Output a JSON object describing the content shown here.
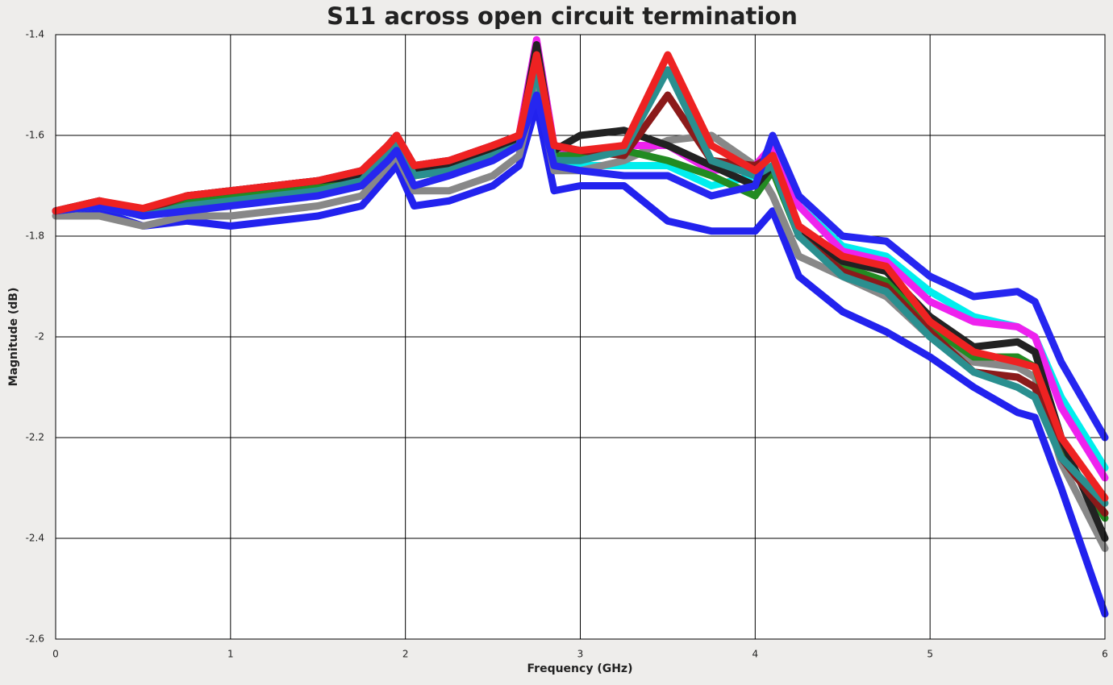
{
  "chart_data": {
    "type": "line",
    "title": "S11 across open circuit termination",
    "x_label": "Frequency (GHz)",
    "y_label": "Magnitude (dB)",
    "x": [
      0,
      0.25,
      0.5,
      0.75,
      1,
      1.25,
      1.5,
      1.75,
      1.9,
      1.95,
      2.05,
      2.25,
      2.5,
      2.65,
      2.75,
      2.85,
      3,
      3.25,
      3.5,
      3.75,
      4,
      4.1,
      4.25,
      4.5,
      4.75,
      5,
      5.25,
      5.5,
      5.6,
      5.75,
      6
    ],
    "xlim": [
      0,
      6
    ],
    "xticks": [
      0,
      1,
      2,
      3,
      4,
      5,
      6
    ],
    "ylim": [
      -2.6,
      -1.4
    ],
    "yticks": [
      -2.6,
      -2.4,
      -2.2,
      -2,
      -1.8,
      -1.6,
      -1.4
    ],
    "grid": true,
    "series": [
      {
        "color": "#2222ee",
        "values": [
          -1.75,
          -1.75,
          -1.78,
          -1.77,
          -1.78,
          -1.77,
          -1.76,
          -1.74,
          -1.68,
          -1.66,
          -1.74,
          -1.73,
          -1.7,
          -1.66,
          -1.54,
          -1.71,
          -1.7,
          -1.7,
          -1.77,
          -1.79,
          -1.79,
          -1.75,
          -1.88,
          -1.95,
          -1.99,
          -2.04,
          -2.1,
          -2.15,
          -2.16,
          -2.3,
          -2.55
        ]
      },
      {
        "color": "#00eeee",
        "values": [
          -1.75,
          -1.74,
          -1.76,
          -1.74,
          -1.73,
          -1.72,
          -1.71,
          -1.69,
          -1.63,
          -1.61,
          -1.68,
          -1.66,
          -1.64,
          -1.62,
          -1.5,
          -1.65,
          -1.66,
          -1.66,
          -1.66,
          -1.7,
          -1.68,
          -1.63,
          -1.74,
          -1.82,
          -1.84,
          -1.91,
          -1.96,
          -1.98,
          -2.0,
          -2.12,
          -2.26
        ]
      },
      {
        "color": "#888888",
        "values": [
          -1.76,
          -1.76,
          -1.78,
          -1.76,
          -1.76,
          -1.75,
          -1.74,
          -1.72,
          -1.66,
          -1.64,
          -1.71,
          -1.71,
          -1.68,
          -1.64,
          -1.5,
          -1.67,
          -1.67,
          -1.65,
          -1.61,
          -1.6,
          -1.66,
          -1.72,
          -1.84,
          -1.88,
          -1.92,
          -2.0,
          -2.05,
          -2.06,
          -2.08,
          -2.25,
          -2.42
        ]
      },
      {
        "color": "#ee22ee",
        "values": [
          -1.75,
          -1.73,
          -1.75,
          -1.72,
          -1.71,
          -1.7,
          -1.69,
          -1.67,
          -1.62,
          -1.6,
          -1.66,
          -1.65,
          -1.62,
          -1.6,
          -1.41,
          -1.62,
          -1.64,
          -1.62,
          -1.62,
          -1.67,
          -1.66,
          -1.62,
          -1.74,
          -1.83,
          -1.85,
          -1.93,
          -1.97,
          -1.98,
          -2.0,
          -2.14,
          -2.28
        ]
      },
      {
        "color": "#228b22",
        "values": [
          -1.75,
          -1.74,
          -1.76,
          -1.73,
          -1.72,
          -1.71,
          -1.7,
          -1.68,
          -1.62,
          -1.61,
          -1.68,
          -1.67,
          -1.64,
          -1.62,
          -1.44,
          -1.64,
          -1.64,
          -1.63,
          -1.65,
          -1.68,
          -1.72,
          -1.67,
          -1.8,
          -1.86,
          -1.89,
          -1.98,
          -2.04,
          -2.04,
          -2.06,
          -2.22,
          -2.36
        ]
      },
      {
        "color": "#222222",
        "values": [
          -1.75,
          -1.73,
          -1.75,
          -1.72,
          -1.71,
          -1.7,
          -1.69,
          -1.68,
          -1.62,
          -1.6,
          -1.67,
          -1.66,
          -1.63,
          -1.61,
          -1.42,
          -1.63,
          -1.6,
          -1.59,
          -1.62,
          -1.66,
          -1.7,
          -1.66,
          -1.79,
          -1.85,
          -1.87,
          -1.96,
          -2.02,
          -2.01,
          -2.03,
          -2.2,
          -2.4
        ]
      },
      {
        "color": "#8b1a1a",
        "values": [
          -1.75,
          -1.73,
          -1.75,
          -1.72,
          -1.71,
          -1.7,
          -1.69,
          -1.67,
          -1.62,
          -1.6,
          -1.66,
          -1.65,
          -1.62,
          -1.6,
          -1.45,
          -1.62,
          -1.63,
          -1.64,
          -1.52,
          -1.65,
          -1.66,
          -1.64,
          -1.8,
          -1.87,
          -1.9,
          -1.99,
          -2.07,
          -2.08,
          -2.1,
          -2.24,
          -2.35
        ]
      },
      {
        "color": "#2a8f8f",
        "values": [
          -1.75,
          -1.74,
          -1.76,
          -1.74,
          -1.73,
          -1.72,
          -1.71,
          -1.69,
          -1.63,
          -1.61,
          -1.68,
          -1.67,
          -1.64,
          -1.62,
          -1.47,
          -1.65,
          -1.65,
          -1.63,
          -1.47,
          -1.65,
          -1.68,
          -1.66,
          -1.8,
          -1.88,
          -1.91,
          -2.0,
          -2.07,
          -2.1,
          -2.12,
          -2.24,
          -2.33
        ]
      },
      {
        "color": "#2626f0",
        "values": [
          -1.75,
          -1.74,
          -1.76,
          -1.75,
          -1.74,
          -1.73,
          -1.72,
          -1.7,
          -1.65,
          -1.63,
          -1.7,
          -1.68,
          -1.65,
          -1.62,
          -1.52,
          -1.66,
          -1.67,
          -1.68,
          -1.68,
          -1.72,
          -1.7,
          -1.6,
          -1.72,
          -1.8,
          -1.81,
          -1.88,
          -1.92,
          -1.91,
          -1.93,
          -2.05,
          -2.2
        ]
      },
      {
        "color": "#ee2222",
        "values": [
          -1.75,
          -1.73,
          -1.745,
          -1.72,
          -1.71,
          -1.7,
          -1.69,
          -1.67,
          -1.62,
          -1.6,
          -1.66,
          -1.65,
          -1.62,
          -1.6,
          -1.44,
          -1.62,
          -1.63,
          -1.62,
          -1.44,
          -1.62,
          -1.67,
          -1.64,
          -1.78,
          -1.84,
          -1.86,
          -1.97,
          -2.03,
          -2.05,
          -2.06,
          -2.2,
          -2.32
        ]
      }
    ]
  }
}
